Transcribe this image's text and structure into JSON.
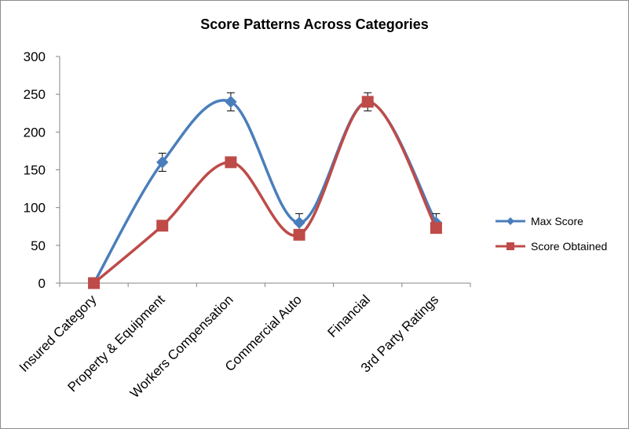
{
  "chart_data": {
    "type": "line",
    "title": "Score Patterns Across Categories",
    "xlabel": "",
    "ylabel": "",
    "ylim": [
      0,
      300
    ],
    "yticks": [
      0,
      50,
      100,
      150,
      200,
      250,
      300
    ],
    "categories": [
      "Insured Category",
      "Property & Equipment",
      "Workers Compensation",
      "Commercial Auto",
      "Financial",
      "3rd Party Ratings"
    ],
    "series": [
      {
        "name": "Max Score",
        "values": [
          0,
          160,
          240,
          80,
          240,
          80
        ],
        "color": "#4a7ebb",
        "marker": "diamond"
      },
      {
        "name": "Score Obtained",
        "values": [
          0,
          76,
          160,
          64,
          240,
          73
        ],
        "color": "#be4b48",
        "marker": "square"
      }
    ],
    "error_bar": 12,
    "smooth": true,
    "grid": false,
    "legend": "right"
  }
}
